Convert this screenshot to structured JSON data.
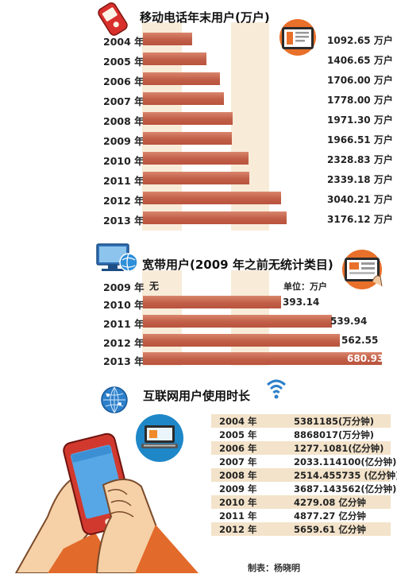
{
  "credit": "制表：杨晓明",
  "chart_data": [
    {
      "type": "bar",
      "title": "移动电话年末用户(万户)",
      "categories": [
        "2004 年",
        "2005 年",
        "2006 年",
        "2007 年",
        "2008 年",
        "2009 年",
        "2010 年",
        "2011 年",
        "2012 年",
        "2013 年"
      ],
      "values": [
        1092.65,
        1406.65,
        1706.0,
        1778.0,
        1971.3,
        1966.51,
        2328.83,
        2339.18,
        3040.21,
        3176.12
      ],
      "value_labels": [
        "1092.65 万户",
        "1406.65 万户",
        "1706.00 万户",
        "1778.00 万户",
        "1971.30 万户",
        "1966.51 万户",
        "2328.83 万户",
        "2339.18 万户",
        "3040.21 万户",
        "3176.12 万户"
      ],
      "orientation": "horizontal",
      "bar_color": "#c9694f"
    },
    {
      "type": "bar",
      "title": "宽带用户(2009 年之前无统计类目)",
      "unit_label": "单位：万户",
      "categories": [
        "2009 年",
        "2010 年",
        "2011 年",
        "2012 年",
        "2013 年"
      ],
      "values": [
        null,
        393.14,
        539.94,
        562.55,
        680.93
      ],
      "value_labels": [
        "无",
        "393.14",
        "539.94",
        "562.55",
        "680.93"
      ],
      "orientation": "horizontal",
      "bar_color": "#c9694f"
    },
    {
      "type": "table",
      "title": "互联网用户使用时长",
      "rows": [
        {
          "year": "2004 年",
          "value": "5381185(万分钟)"
        },
        {
          "year": "2005 年",
          "value": "8868017(万分钟)"
        },
        {
          "year": "2006 年",
          "value": "1277.1081(亿分钟)"
        },
        {
          "year": "2007 年",
          "value": "2033.114100(亿分钟)"
        },
        {
          "year": "2008 年",
          "value": "2514.455735 (亿分钟)"
        },
        {
          "year": "2009 年",
          "value": "3687.143562(亿分钟)"
        },
        {
          "year": "2010 年",
          "value": "4279.08 亿分钟"
        },
        {
          "year": "2011 年",
          "value": "4877.27 亿分钟"
        },
        {
          "year": "2012 年",
          "value": "5659.61 亿分钟"
        }
      ]
    }
  ],
  "icons": [
    "mobile-phone-icon",
    "tablet-screen-icon",
    "computer-globe-icon",
    "tablet-touch-icon",
    "network-globe-icon",
    "wifi-signal-icon",
    "laptop-keyboard-icon",
    "hands-holding-phone-illustration"
  ]
}
